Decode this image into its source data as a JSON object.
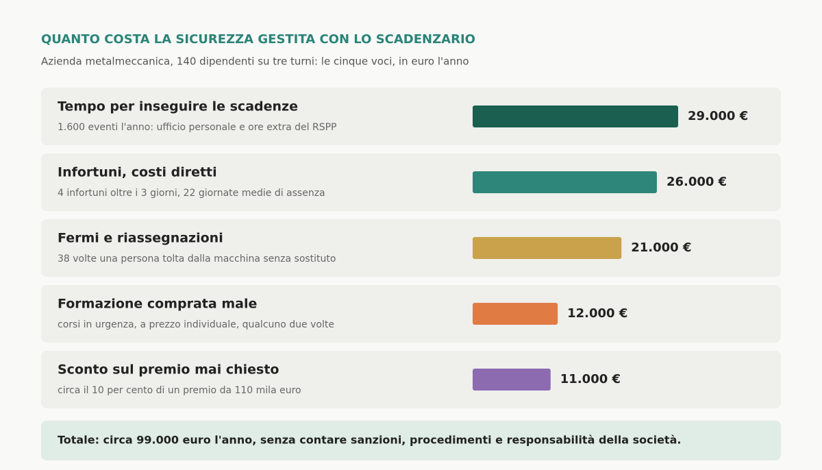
{
  "chart_data": {
    "type": "hbar",
    "title": "QUANTO COSTA LA SICUREZZA GESTITA CON LO SCADENZARIO",
    "subtitle": "Azienda metalmeccanica, 140 dipendenti su tre turni: le cinque voci, in euro l'anno",
    "categories": [
      "Tempo per inseguire le scadenze",
      "Infortuni, costi diretti",
      "Fermi e riassegnazioni",
      "Formazione comprata male",
      "Sconto sul premio mai chiesto"
    ],
    "descriptions": [
      "1.600 eventi l'anno: ufficio personale e ore extra del RSPP",
      "4 infortuni oltre i 3 giorni, 22 giornate medie di assenza",
      "38 volte una persona tolta dalla macchina senza sostituto",
      "corsi in urgenza, a prezzo individuale, qualcuno due volte",
      "circa il 10 per cento di un premio da 110 mila euro"
    ],
    "values": [
      29000,
      26000,
      21000,
      12000,
      11000
    ],
    "value_labels": [
      "29.000 €",
      "26.000 €",
      "21.000 €",
      "12.000 €",
      "11.000 €"
    ],
    "colors": [
      "#1b5f51",
      "#2e867b",
      "#c9a24b",
      "#e07b43",
      "#8c6bb1"
    ],
    "xlim": [
      0,
      29000
    ],
    "note": "Totale: circa 99.000 euro l'anno, senza contare sanzioni, procedimenti e responsabilità della società."
  }
}
